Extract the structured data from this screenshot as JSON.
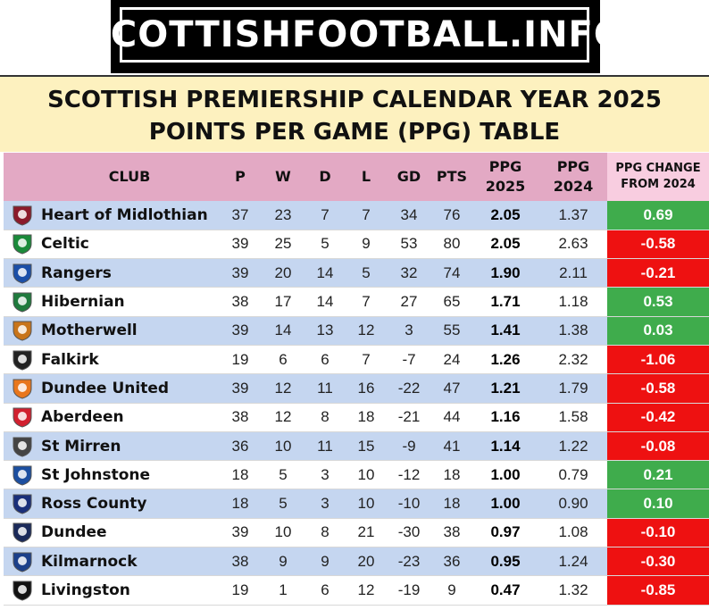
{
  "logo": {
    "text": "SCOTTISHFOOTBALL.INFO"
  },
  "title": {
    "line1": "SCOTTISH PREMIERSHIP CALENDAR YEAR 2025",
    "line2": "POINTS PER GAME (PPG) TABLE"
  },
  "colors": {
    "positive": "#3fac4c",
    "negative": "#ee1111",
    "row_alt": "#c5d6f0",
    "header": "#e3a9c4",
    "title_bg": "#fdf1bf"
  },
  "headers": {
    "club": "CLUB",
    "p": "P",
    "w": "W",
    "d": "D",
    "l": "L",
    "gd": "GD",
    "pts": "PTS",
    "ppg2025_a": "PPG",
    "ppg2025_b": "2025",
    "ppg2024_a": "PPG",
    "ppg2024_b": "2024",
    "chg_a": "PPG CHANGE",
    "chg_b": "FROM 2024"
  },
  "rows": [
    {
      "club": "Heart of Midlothian",
      "crest": "hearts-crest-icon",
      "crest_color": "#8b1a2b",
      "p": "37",
      "w": "23",
      "d": "7",
      "l": "7",
      "gd": "34",
      "pts": "76",
      "ppg2025": "2.05",
      "ppg2024": "1.37",
      "change": "0.69",
      "dir": "pos"
    },
    {
      "club": "Celtic",
      "crest": "celtic-crest-icon",
      "crest_color": "#1a8a3a",
      "p": "39",
      "w": "25",
      "d": "5",
      "l": "9",
      "gd": "53",
      "pts": "80",
      "ppg2025": "2.05",
      "ppg2024": "2.63",
      "change": "-0.58",
      "dir": "neg"
    },
    {
      "club": "Rangers",
      "crest": "rangers-crest-icon",
      "crest_color": "#1b4fa8",
      "p": "39",
      "w": "20",
      "d": "14",
      "l": "5",
      "gd": "32",
      "pts": "74",
      "ppg2025": "1.90",
      "ppg2024": "2.11",
      "change": "-0.21",
      "dir": "neg"
    },
    {
      "club": "Hibernian",
      "crest": "hibernian-crest-icon",
      "crest_color": "#1f7a3d",
      "p": "38",
      "w": "17",
      "d": "14",
      "l": "7",
      "gd": "27",
      "pts": "65",
      "ppg2025": "1.71",
      "ppg2024": "1.18",
      "change": "0.53",
      "dir": "pos"
    },
    {
      "club": "Motherwell",
      "crest": "motherwell-crest-icon",
      "crest_color": "#c8741a",
      "p": "39",
      "w": "14",
      "d": "13",
      "l": "12",
      "gd": "3",
      "pts": "55",
      "ppg2025": "1.41",
      "ppg2024": "1.38",
      "change": "0.03",
      "dir": "pos"
    },
    {
      "club": "Falkirk",
      "crest": "falkirk-crest-icon",
      "crest_color": "#222222",
      "p": "19",
      "w": "6",
      "d": "6",
      "l": "7",
      "gd": "-7",
      "pts": "24",
      "ppg2025": "1.26",
      "ppg2024": "2.32",
      "change": "-1.06",
      "dir": "neg"
    },
    {
      "club": "Dundee United",
      "crest": "dundee-united-crest-icon",
      "crest_color": "#e8761c",
      "p": "39",
      "w": "12",
      "d": "11",
      "l": "16",
      "gd": "-22",
      "pts": "47",
      "ppg2025": "1.21",
      "ppg2024": "1.79",
      "change": "-0.58",
      "dir": "neg"
    },
    {
      "club": "Aberdeen",
      "crest": "aberdeen-crest-icon",
      "crest_color": "#d1202f",
      "p": "38",
      "w": "12",
      "d": "8",
      "l": "18",
      "gd": "-21",
      "pts": "44",
      "ppg2025": "1.16",
      "ppg2024": "1.58",
      "change": "-0.42",
      "dir": "neg"
    },
    {
      "club": "St Mirren",
      "crest": "st-mirren-crest-icon",
      "crest_color": "#444444",
      "p": "36",
      "w": "10",
      "d": "11",
      "l": "15",
      "gd": "-9",
      "pts": "41",
      "ppg2025": "1.14",
      "ppg2024": "1.22",
      "change": "-0.08",
      "dir": "neg"
    },
    {
      "club": "St Johnstone",
      "crest": "st-johnstone-crest-icon",
      "crest_color": "#1c4fa0",
      "p": "18",
      "w": "5",
      "d": "3",
      "l": "10",
      "gd": "-12",
      "pts": "18",
      "ppg2025": "1.00",
      "ppg2024": "0.79",
      "change": "0.21",
      "dir": "pos"
    },
    {
      "club": "Ross County",
      "crest": "ross-county-crest-icon",
      "crest_color": "#1a2f7a",
      "p": "18",
      "w": "5",
      "d": "3",
      "l": "10",
      "gd": "-10",
      "pts": "18",
      "ppg2025": "1.00",
      "ppg2024": "0.90",
      "change": "0.10",
      "dir": "pos"
    },
    {
      "club": "Dundee",
      "crest": "dundee-crest-icon",
      "crest_color": "#1a2a5a",
      "p": "39",
      "w": "10",
      "d": "8",
      "l": "21",
      "gd": "-30",
      "pts": "38",
      "ppg2025": "0.97",
      "ppg2024": "1.08",
      "change": "-0.10",
      "dir": "neg"
    },
    {
      "club": "Kilmarnock",
      "crest": "kilmarnock-crest-icon",
      "crest_color": "#1b3f8a",
      "p": "38",
      "w": "9",
      "d": "9",
      "l": "20",
      "gd": "-23",
      "pts": "36",
      "ppg2025": "0.95",
      "ppg2024": "1.24",
      "change": "-0.30",
      "dir": "neg"
    },
    {
      "club": "Livingston",
      "crest": "livingston-crest-icon",
      "crest_color": "#111111",
      "p": "19",
      "w": "1",
      "d": "6",
      "l": "12",
      "gd": "-19",
      "pts": "9",
      "ppg2025": "0.47",
      "ppg2024": "1.32",
      "change": "-0.85",
      "dir": "neg"
    }
  ]
}
